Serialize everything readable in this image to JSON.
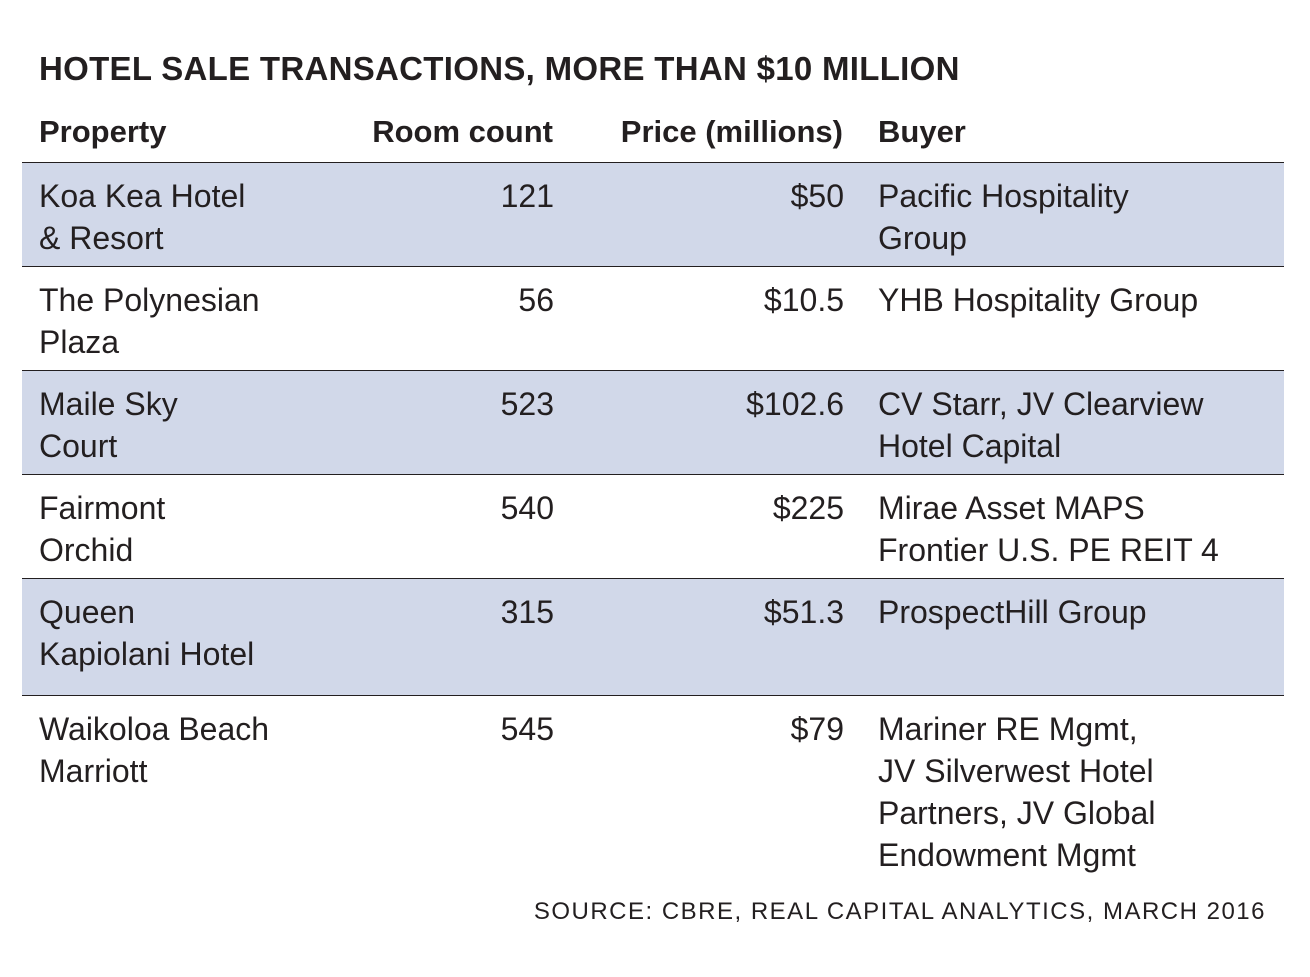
{
  "chart_data": {
    "type": "table",
    "title": "HOTEL SALE TRANSACTIONS, MORE THAN $10 MILLION",
    "columns": [
      "Property",
      "Room count",
      "Price (millions)",
      "Buyer"
    ],
    "rows": [
      {
        "property": "Koa Kea Hotel\n& Resort",
        "rooms": "121",
        "price": "$50",
        "buyer": "Pacific Hospitality\nGroup"
      },
      {
        "property": "The Polynesian\nPlaza",
        "rooms": "56",
        "price": "$10.5",
        "buyer": " YHB Hospitality Group"
      },
      {
        "property": "Maile Sky\nCourt",
        "rooms": "523",
        "price": "$102.6",
        "buyer": "CV Starr, JV Clearview\nHotel Capital"
      },
      {
        "property": "Fairmont\nOrchid",
        "rooms": "540",
        "price": "$225",
        "buyer": "Mirae Asset MAPS\nFrontier U.S. PE REIT 4"
      },
      {
        "property": "Queen\nKapiolani Hotel",
        "rooms": "315",
        "price": "$51.3",
        "buyer": "ProspectHill Group"
      },
      {
        "property": "Waikoloa Beach\nMarriott",
        "rooms": "545",
        "price": "$79",
        "buyer": "Mariner RE Mgmt,\nJV Silverwest Hotel\nPartners, JV Global\nEndowment Mgmt"
      }
    ],
    "source": "SOURCE: CBRE, REAL CAPITAL ANALYTICS, MARCH 2016",
    "colors": {
      "shaded_row": "#d1d8e9",
      "text": "#231f20"
    }
  }
}
